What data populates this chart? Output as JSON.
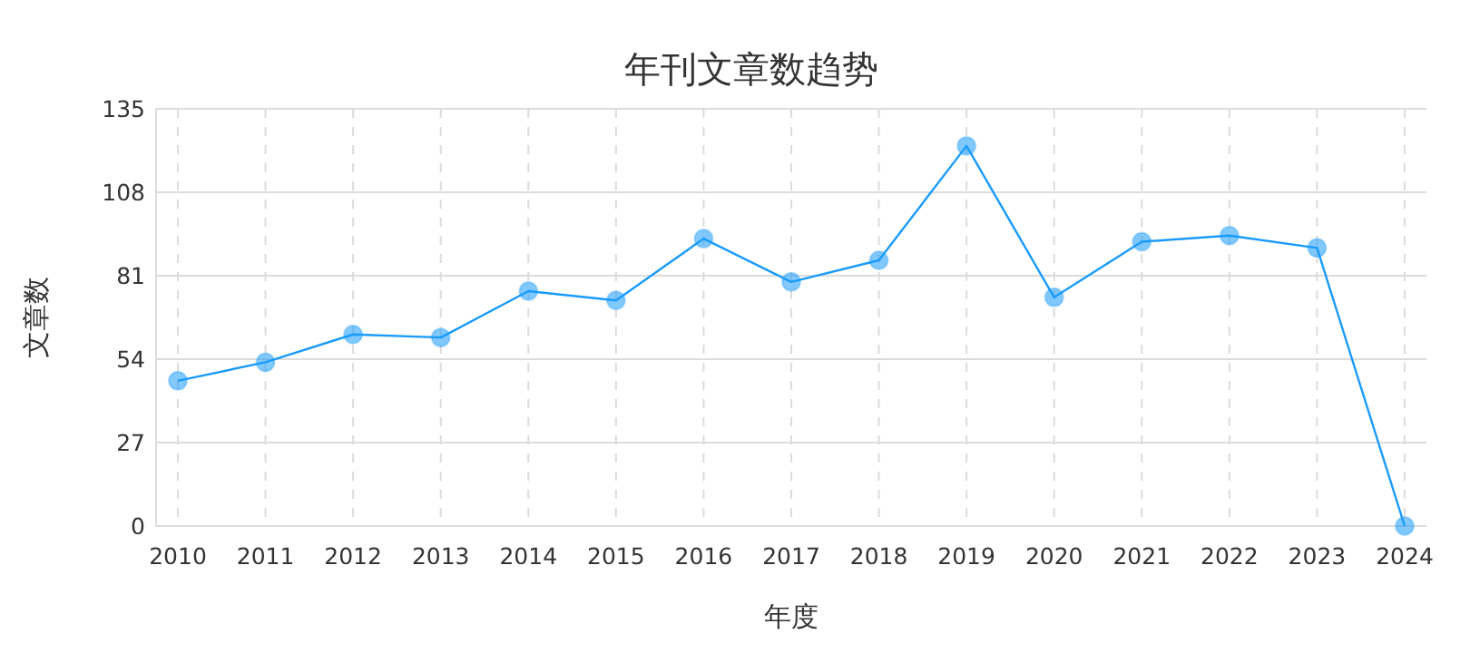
{
  "chart_data": {
    "type": "line",
    "title": "年刊文章数趋势",
    "xlabel": "年度",
    "ylabel": "文章数",
    "categories": [
      "2010",
      "2011",
      "2012",
      "2013",
      "2014",
      "2015",
      "2016",
      "2017",
      "2018",
      "2019",
      "2020",
      "2021",
      "2022",
      "2023",
      "2024"
    ],
    "series": [
      {
        "color": "#1a9bfc",
        "values": [
          47,
          53,
          62,
          61,
          76,
          73,
          93,
          79,
          86,
          123,
          74,
          92,
          94,
          90,
          0
        ]
      }
    ],
    "ylim": [
      0,
      135
    ],
    "yticks": [
      0,
      27,
      54,
      81,
      108,
      135
    ],
    "grid": true,
    "marker": "circle"
  }
}
